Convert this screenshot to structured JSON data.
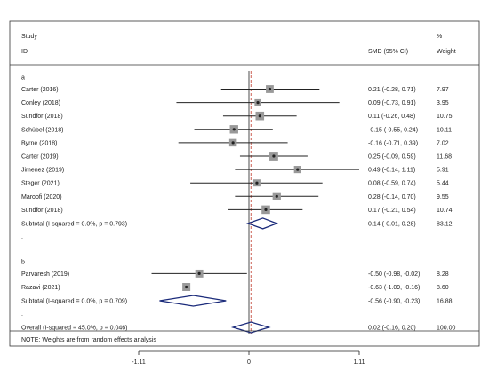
{
  "chart_data": {
    "type": "forest",
    "headers": {
      "study_line1": "Study",
      "study_line2": "ID",
      "smd": "SMD (95% CI)",
      "weight_line1": "%",
      "weight_line2": "Weight"
    },
    "groups": [
      {
        "label": "a",
        "studies": [
          {
            "label": "Carter  (2016)",
            "est": 0.21,
            "lo": -0.28,
            "hi": 0.71,
            "ci_text": "0.21 (-0.28, 0.71)",
            "weight": "7.97"
          },
          {
            "label": "Conley  (2018)",
            "est": 0.09,
            "lo": -0.73,
            "hi": 0.91,
            "ci_text": "0.09 (-0.73, 0.91)",
            "weight": "3.95"
          },
          {
            "label": "Sundfor  (2018)",
            "est": 0.11,
            "lo": -0.26,
            "hi": 0.48,
            "ci_text": "0.11 (-0.26, 0.48)",
            "weight": "10.75"
          },
          {
            "label": "Schübel  (2018)",
            "est": -0.15,
            "lo": -0.55,
            "hi": 0.24,
            "ci_text": "-0.15 (-0.55, 0.24)",
            "weight": "10.11"
          },
          {
            "label": "Byrne  (2018)",
            "est": -0.16,
            "lo": -0.71,
            "hi": 0.39,
            "ci_text": "-0.16 (-0.71, 0.39)",
            "weight": "7.02"
          },
          {
            "label": "Carter  (2019)",
            "est": 0.25,
            "lo": -0.09,
            "hi": 0.59,
            "ci_text": "0.25 (-0.09, 0.59)",
            "weight": "11.68"
          },
          {
            "label": "Jimenez  (2019)",
            "est": 0.49,
            "lo": -0.14,
            "hi": 1.11,
            "ci_text": "0.49 (-0.14, 1.11)",
            "weight": "5.91"
          },
          {
            "label": "Steger  (2021)",
            "est": 0.08,
            "lo": -0.59,
            "hi": 0.74,
            "ci_text": "0.08 (-0.59, 0.74)",
            "weight": "5.44"
          },
          {
            "label": "Maroofi  (2020)",
            "est": 0.28,
            "lo": -0.14,
            "hi": 0.7,
            "ci_text": "0.28 (-0.14, 0.70)",
            "weight": "9.55"
          },
          {
            "label": "Sundfor  (2018)",
            "est": 0.17,
            "lo": -0.21,
            "hi": 0.54,
            "ci_text": "0.17 (-0.21, 0.54)",
            "weight": "10.74"
          }
        ],
        "subtotal": {
          "label": "Subtotal  (I-squared = 0.0%, p = 0.793)",
          "est": 0.14,
          "lo": -0.01,
          "hi": 0.28,
          "ci_text": "0.14 (-0.01, 0.28)",
          "weight": "83.12"
        }
      },
      {
        "label": "b",
        "studies": [
          {
            "label": "Parvaresh  (2019)",
            "est": -0.5,
            "lo": -0.98,
            "hi": -0.02,
            "ci_text": "-0.50 (-0.98, -0.02)",
            "weight": "8.28"
          },
          {
            "label": "Razavi  (2021)",
            "est": -0.63,
            "lo": -1.09,
            "hi": -0.16,
            "ci_text": "-0.63 (-1.09, -0.16)",
            "weight": "8.60"
          }
        ],
        "subtotal": {
          "label": "Subtotal  (I-squared = 0.0%, p = 0.709)",
          "est": -0.56,
          "lo": -0.9,
          "hi": -0.23,
          "ci_text": "-0.56 (-0.90, -0.23)",
          "weight": "16.88"
        }
      }
    ],
    "overall": {
      "label": "Overall  (I-squared = 45.0%, p = 0.046)",
      "est": 0.02,
      "lo": -0.16,
      "hi": 0.2,
      "ci_text": "0.02 (-0.16, 0.20)",
      "weight": "100.00"
    },
    "note": "NOTE: Weights are from random effects analysis",
    "x_ticks": [
      {
        "value": -1.11,
        "label": "-1.11"
      },
      {
        "value": 0,
        "label": "0"
      },
      {
        "value": 1.11,
        "label": "1.11"
      }
    ],
    "xlim": [
      -1.11,
      1.11
    ],
    "null_line": 0,
    "overall_line": 0.02,
    "colors": {
      "diamond": "#1a2a7a",
      "overall_line": "#c0392b",
      "box": "#999999",
      "ink": "#222222",
      "frame": "#333333"
    }
  }
}
